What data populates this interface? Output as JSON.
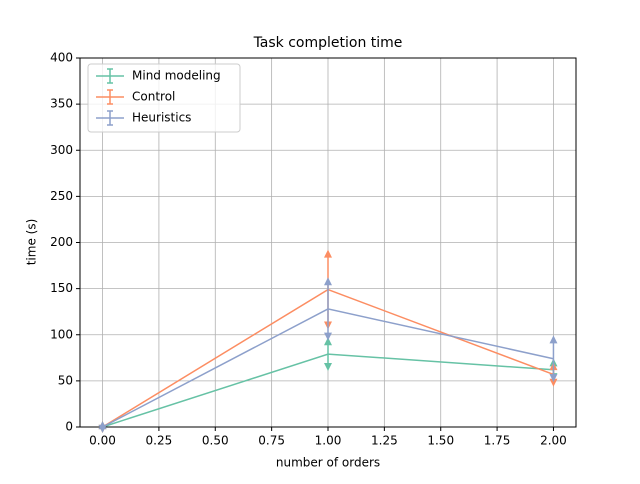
{
  "chart_data": {
    "type": "errorbar",
    "title": "Task completion time",
    "x_label": "number of orders",
    "y_label": "time (s)",
    "x": [
      0,
      1,
      2
    ],
    "series": [
      {
        "name": "Mind modeling",
        "color": "#66c2a5",
        "values": [
          0,
          79,
          62
        ],
        "errors": [
          2,
          14,
          8
        ]
      },
      {
        "name": "Control",
        "color": "#fc8d62",
        "values": [
          0,
          149,
          57
        ],
        "errors": [
          2,
          39,
          9
        ]
      },
      {
        "name": "Heuristics",
        "color": "#8da0cb",
        "values": [
          0,
          128,
          74
        ],
        "errors": [
          2,
          30,
          21
        ]
      }
    ],
    "xlim": [
      -0.1,
      2.1
    ],
    "xticks": [
      {
        "value": 0,
        "label": "0.00"
      },
      {
        "value": 0.25,
        "label": "0.25"
      },
      {
        "value": 0.5,
        "label": "0.50"
      },
      {
        "value": 0.75,
        "label": "0.75"
      },
      {
        "value": 1,
        "label": "1.00"
      },
      {
        "value": 1.25,
        "label": "1.25"
      },
      {
        "value": 1.5,
        "label": "1.50"
      },
      {
        "value": 1.75,
        "label": "1.75"
      },
      {
        "value": 2,
        "label": "2.00"
      }
    ],
    "ylim": [
      0,
      400
    ],
    "yticks": [
      0,
      50,
      100,
      150,
      200,
      250,
      300,
      350,
      400
    ],
    "grid": true,
    "legend": "upper left"
  }
}
